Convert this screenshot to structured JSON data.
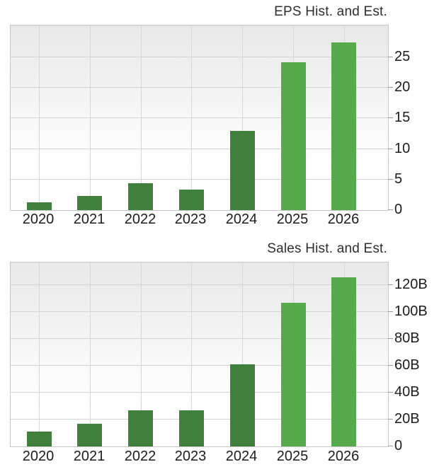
{
  "colors": {
    "historical_bar": "#41803c",
    "estimate_bar": "#56aa4c",
    "grid": "#d2d2d2",
    "plot_bg_top": "#e8e8e8",
    "plot_bg_bottom": "#ffffff",
    "text": "#1c1c1c"
  },
  "chart_data": [
    {
      "type": "bar",
      "title": "EPS Hist. and Est.",
      "categories": [
        "2020",
        "2021",
        "2022",
        "2023",
        "2024",
        "2025",
        "2026"
      ],
      "values": [
        1.3,
        2.3,
        4.4,
        3.3,
        13.0,
        24.2,
        27.4
      ],
      "bar_kinds": [
        "historical",
        "historical",
        "historical",
        "historical",
        "historical",
        "estimate",
        "estimate"
      ],
      "y_ticks": [
        0,
        5,
        10,
        15,
        20,
        25
      ],
      "y_tick_labels": [
        "0",
        "5",
        "10",
        "15",
        "20",
        "25"
      ],
      "ylim": [
        0,
        30.2
      ],
      "xlabel": "",
      "ylabel": "",
      "axis_side": "right",
      "grid": true,
      "legend": "none"
    },
    {
      "type": "bar",
      "title": "Sales Hist. and Est.",
      "categories": [
        "2020",
        "2021",
        "2022",
        "2023",
        "2024",
        "2025",
        "2026"
      ],
      "values": [
        10.9,
        16.7,
        27,
        27,
        61,
        107,
        126
      ],
      "bar_kinds": [
        "historical",
        "historical",
        "historical",
        "historical",
        "historical",
        "estimate",
        "estimate"
      ],
      "y_ticks": [
        0,
        20,
        40,
        60,
        80,
        100,
        120
      ],
      "y_tick_labels": [
        "0",
        "20B",
        "40B",
        "60B",
        "80B",
        "100B",
        "120B"
      ],
      "ylim": [
        0,
        137
      ],
      "xlabel": "",
      "ylabel": "",
      "axis_side": "right",
      "grid": true,
      "legend": "none"
    }
  ]
}
